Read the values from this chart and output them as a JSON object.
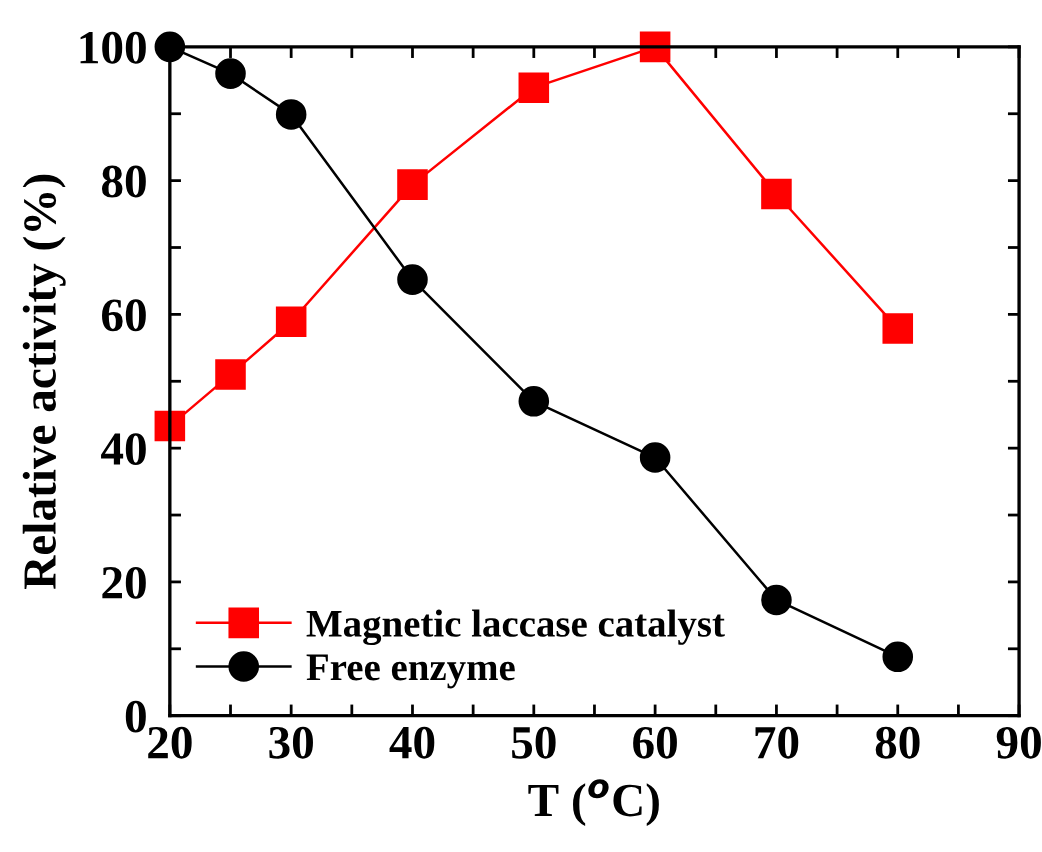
{
  "chart_data": {
    "type": "line",
    "xlabel": "T ($^{o}$C)",
    "ylabel": "Relative activity (%)",
    "xlim": [
      20,
      90
    ],
    "ylim": [
      0,
      100
    ],
    "xticks": [
      20,
      {
        "value": 25,
        "label": null
      },
      30,
      {
        "value": 35,
        "label": null
      },
      40,
      {
        "value": 45,
        "label": null
      },
      50,
      {
        "value": 55,
        "label": null
      },
      60,
      {
        "value": 65,
        "label": null
      },
      70,
      {
        "value": 75,
        "label": null
      },
      80,
      {
        "value": 85,
        "label": null
      },
      90
    ],
    "yticks": [
      0,
      {
        "value": 10,
        "label": null
      },
      20,
      {
        "value": 30,
        "label": null
      },
      40,
      {
        "value": 50,
        "label": null
      },
      60,
      {
        "value": 70,
        "label": null
      },
      80,
      {
        "value": 90,
        "label": null
      },
      100
    ],
    "x": [
      20,
      25,
      30,
      40,
      50,
      60,
      70,
      80
    ],
    "series": [
      {
        "name": "Magnetic laccase catalyst",
        "color": "#ff0000",
        "marker": "square",
        "values": [
          43.3,
          51.0,
          58.9,
          79.4,
          93.9,
          100,
          78.0,
          57.9
        ]
      },
      {
        "name": "Free enzyme",
        "color": "#000000",
        "marker": "circle",
        "values": [
          100,
          96.0,
          89.9,
          65.2,
          47.0,
          38.6,
          17.3,
          8.8
        ]
      }
    ],
    "line_style": "solid",
    "grid": false,
    "legend": "bottom left"
  }
}
